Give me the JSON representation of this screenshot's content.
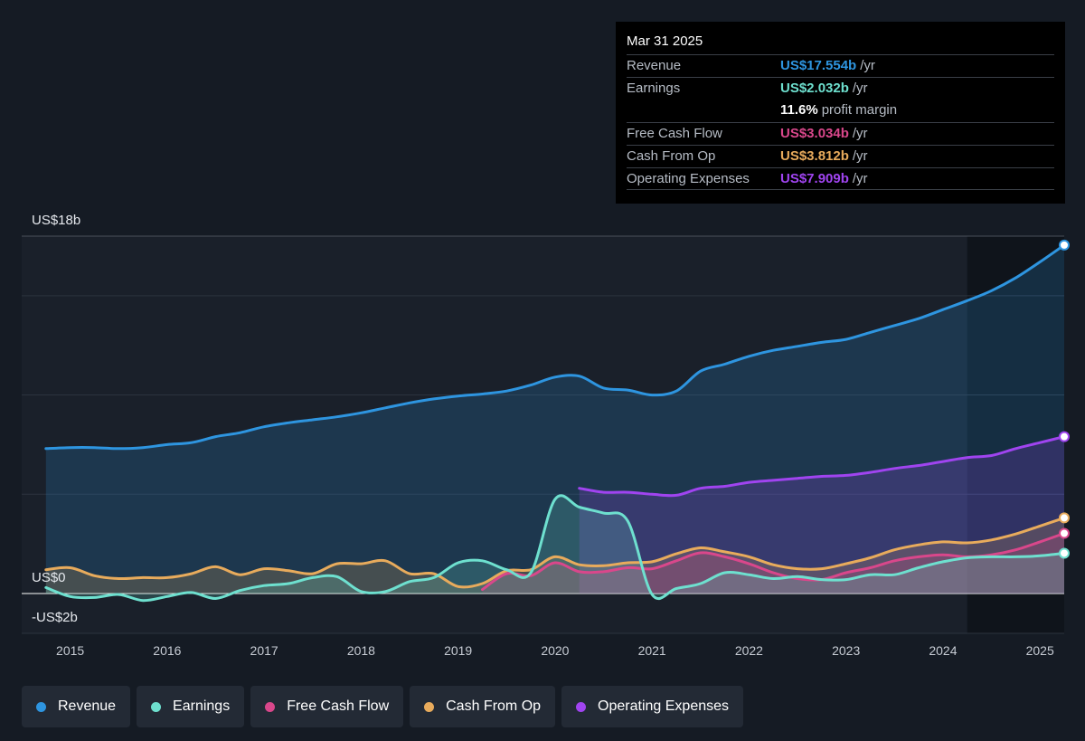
{
  "tooltip": {
    "date": "Mar 31 2025",
    "rows": [
      {
        "label": "Revenue",
        "value": "US$17.554b",
        "suffix": "/yr",
        "color": "#2e95e0"
      },
      {
        "label": "Earnings",
        "value": "US$2.032b",
        "suffix": "/yr",
        "color": "#6ee0cf"
      },
      {
        "label": "",
        "value": "11.6%",
        "suffix": "profit margin",
        "color": "#ffffff"
      },
      {
        "label": "Free Cash Flow",
        "value": "US$3.034b",
        "suffix": "/yr",
        "color": "#d9478b"
      },
      {
        "label": "Cash From Op",
        "value": "US$3.812b",
        "suffix": "/yr",
        "color": "#e8ab5c"
      },
      {
        "label": "Operating Expenses",
        "value": "US$7.909b",
        "suffix": "/yr",
        "color": "#a044f0"
      }
    ]
  },
  "legend": [
    {
      "label": "Revenue",
      "color": "#2e95e0"
    },
    {
      "label": "Earnings",
      "color": "#6ee0cf"
    },
    {
      "label": "Free Cash Flow",
      "color": "#d9478b"
    },
    {
      "label": "Cash From Op",
      "color": "#e8ab5c"
    },
    {
      "label": "Operating Expenses",
      "color": "#a044f0"
    }
  ],
  "chart_data": {
    "type": "line",
    "y_labels": {
      "top": "US$18b",
      "zero": "US$0",
      "bottom": "-US$2b"
    },
    "ylim": [
      -2,
      18
    ],
    "xlim": [
      2014.5,
      2025.25
    ],
    "grid": true,
    "highlight_start": 2024.25,
    "x_ticks": [
      {
        "value": 2015,
        "label": "2015"
      },
      {
        "value": 2016,
        "label": "2016"
      },
      {
        "value": 2017,
        "label": "2017"
      },
      {
        "value": 2018,
        "label": "2018"
      },
      {
        "value": 2019,
        "label": "2019"
      },
      {
        "value": 2020,
        "label": "2020"
      },
      {
        "value": 2021,
        "label": "2021"
      },
      {
        "value": 2022,
        "label": "2022"
      },
      {
        "value": 2023,
        "label": "2023"
      },
      {
        "value": 2024,
        "label": "2024"
      },
      {
        "value": 2025,
        "label": "2025"
      }
    ],
    "series": [
      {
        "name": "Revenue",
        "color": "#2e95e0",
        "fill": true,
        "end_marker": true,
        "x": [
          2014.75,
          2015.0,
          2015.25,
          2015.5,
          2015.75,
          2016.0,
          2016.25,
          2016.5,
          2016.75,
          2017.0,
          2017.25,
          2017.5,
          2017.75,
          2018.0,
          2018.25,
          2018.5,
          2018.75,
          2019.0,
          2019.25,
          2019.5,
          2019.75,
          2020.0,
          2020.25,
          2020.5,
          2020.75,
          2021.0,
          2021.25,
          2021.5,
          2021.75,
          2022.0,
          2022.25,
          2022.5,
          2022.75,
          2023.0,
          2023.25,
          2023.5,
          2023.75,
          2024.0,
          2024.25,
          2024.5,
          2024.75,
          2025.0,
          2025.25
        ],
        "y": [
          7.3,
          7.35,
          7.35,
          7.3,
          7.35,
          7.5,
          7.6,
          7.9,
          8.1,
          8.4,
          8.6,
          8.75,
          8.9,
          9.1,
          9.35,
          9.6,
          9.8,
          9.95,
          10.05,
          10.2,
          10.5,
          10.9,
          10.95,
          10.35,
          10.25,
          10.0,
          10.2,
          11.2,
          11.55,
          11.95,
          12.25,
          12.45,
          12.65,
          12.8,
          13.15,
          13.5,
          13.85,
          14.3,
          14.75,
          15.25,
          15.9,
          16.7,
          17.55
        ]
      },
      {
        "name": "Operating Expenses",
        "color": "#a044f0",
        "fill": true,
        "end_marker": true,
        "x": [
          2020.25,
          2020.5,
          2020.75,
          2021.0,
          2021.25,
          2021.5,
          2021.75,
          2022.0,
          2022.25,
          2022.5,
          2022.75,
          2023.0,
          2023.25,
          2023.5,
          2023.75,
          2024.0,
          2024.25,
          2024.5,
          2024.75,
          2025.0,
          2025.25
        ],
        "y": [
          5.3,
          5.1,
          5.1,
          5.0,
          4.95,
          5.3,
          5.4,
          5.6,
          5.7,
          5.8,
          5.9,
          5.95,
          6.1,
          6.3,
          6.45,
          6.65,
          6.85,
          6.95,
          7.3,
          7.6,
          7.9
        ]
      },
      {
        "name": "Cash From Op",
        "color": "#e8ab5c",
        "fill": true,
        "end_marker": true,
        "x": [
          2014.75,
          2015.0,
          2015.25,
          2015.5,
          2015.75,
          2016.0,
          2016.25,
          2016.5,
          2016.75,
          2017.0,
          2017.25,
          2017.5,
          2017.75,
          2018.0,
          2018.25,
          2018.5,
          2018.75,
          2019.0,
          2019.25,
          2019.5,
          2019.75,
          2020.0,
          2020.25,
          2020.5,
          2020.75,
          2021.0,
          2021.25,
          2021.5,
          2021.75,
          2022.0,
          2022.25,
          2022.5,
          2022.75,
          2023.0,
          2023.25,
          2023.5,
          2023.75,
          2024.0,
          2024.25,
          2024.5,
          2024.75,
          2025.0,
          2025.25
        ],
        "y": [
          1.2,
          1.3,
          0.9,
          0.75,
          0.8,
          0.8,
          1.0,
          1.35,
          0.95,
          1.25,
          1.15,
          1.0,
          1.5,
          1.5,
          1.65,
          1.0,
          1.0,
          0.35,
          0.5,
          1.15,
          1.2,
          1.85,
          1.45,
          1.4,
          1.55,
          1.6,
          2.0,
          2.3,
          2.1,
          1.85,
          1.45,
          1.25,
          1.25,
          1.5,
          1.8,
          2.2,
          2.45,
          2.6,
          2.55,
          2.7,
          3.0,
          3.4,
          3.81
        ]
      },
      {
        "name": "Free Cash Flow",
        "color": "#d9478b",
        "fill": true,
        "end_marker": true,
        "x": [
          2019.25,
          2019.5,
          2019.75,
          2020.0,
          2020.25,
          2020.5,
          2020.75,
          2021.0,
          2021.25,
          2021.5,
          2021.75,
          2022.0,
          2022.25,
          2022.5,
          2022.75,
          2023.0,
          2023.25,
          2023.5,
          2023.75,
          2024.0,
          2024.25,
          2024.5,
          2024.75,
          2025.0,
          2025.25
        ],
        "y": [
          0.2,
          1.0,
          0.9,
          1.55,
          1.1,
          1.1,
          1.3,
          1.25,
          1.65,
          2.05,
          1.85,
          1.5,
          1.05,
          0.75,
          0.7,
          1.05,
          1.3,
          1.65,
          1.85,
          1.95,
          1.85,
          1.95,
          2.2,
          2.6,
          3.03
        ]
      },
      {
        "name": "Earnings",
        "color": "#6ee0cf",
        "fill": true,
        "end_marker": true,
        "x": [
          2014.75,
          2015.0,
          2015.25,
          2015.5,
          2015.75,
          2016.0,
          2016.25,
          2016.5,
          2016.75,
          2017.0,
          2017.25,
          2017.5,
          2017.75,
          2018.0,
          2018.25,
          2018.5,
          2018.75,
          2019.0,
          2019.25,
          2019.5,
          2019.75,
          2020.0,
          2020.25,
          2020.5,
          2020.75,
          2021.0,
          2021.25,
          2021.5,
          2021.75,
          2022.0,
          2022.25,
          2022.5,
          2022.75,
          2023.0,
          2023.25,
          2023.5,
          2023.75,
          2024.0,
          2024.25,
          2024.5,
          2024.75,
          2025.0,
          2025.25
        ],
        "y": [
          0.3,
          -0.15,
          -0.2,
          -0.05,
          -0.35,
          -0.15,
          0.05,
          -0.25,
          0.15,
          0.4,
          0.5,
          0.8,
          0.85,
          0.1,
          0.1,
          0.6,
          0.8,
          1.55,
          1.65,
          1.2,
          1.05,
          4.75,
          4.35,
          4.05,
          3.65,
          -0.05,
          0.25,
          0.5,
          1.05,
          0.95,
          0.75,
          0.85,
          0.7,
          0.7,
          0.95,
          0.95,
          1.3,
          1.6,
          1.8,
          1.85,
          1.85,
          1.9,
          2.03
        ]
      }
    ]
  }
}
